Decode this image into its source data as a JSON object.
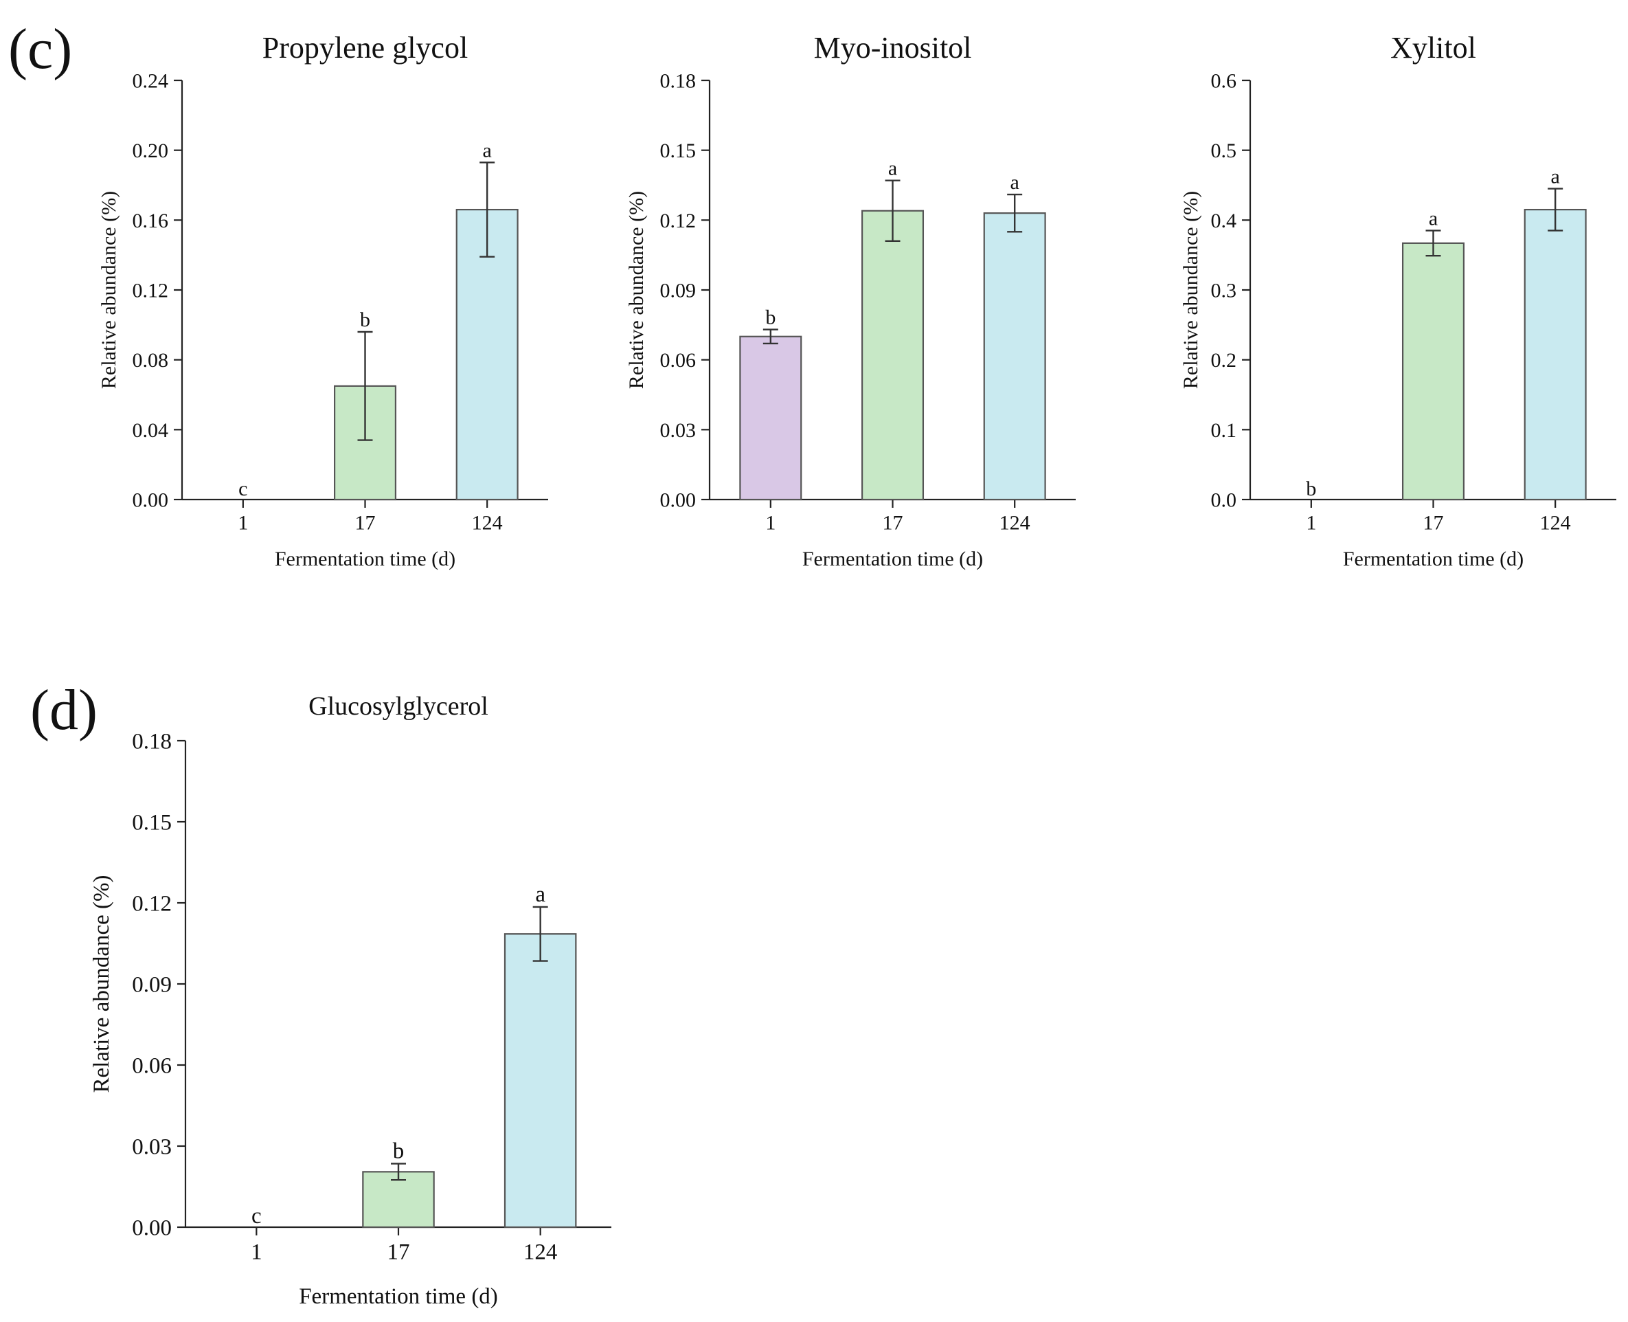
{
  "panels": {
    "c": {
      "label": "(c)"
    },
    "d": {
      "label": "(d)"
    }
  },
  "colors": {
    "day1": "#d9c8e6",
    "day17": "#c7e8c6",
    "day124": "#c9eaf0"
  },
  "chart_data": [
    {
      "panel": "(c)",
      "type": "bar",
      "title": "Propylene glycol",
      "xlabel": "Fermentation time (d)",
      "ylabel": "Relative abundance (%)",
      "categories": [
        "1",
        "17",
        "124"
      ],
      "values": [
        0.0,
        0.065,
        0.166
      ],
      "errors": [
        0.0,
        0.031,
        0.027
      ],
      "significance": [
        "c",
        "b",
        "a"
      ],
      "ylim": [
        0,
        0.24
      ],
      "yticks": [
        0,
        0.04,
        0.08,
        0.12,
        0.16,
        0.2,
        0.24
      ],
      "yticklabels": [
        "0.00",
        "0.04",
        "0.08",
        "0.12",
        "0.16",
        "0.20",
        "0.24"
      ]
    },
    {
      "panel": "(c)",
      "type": "bar",
      "title": "Myo-inositol",
      "xlabel": "Fermentation time (d)",
      "ylabel": "Relative abundance (%)",
      "categories": [
        "1",
        "17",
        "124"
      ],
      "values": [
        0.07,
        0.124,
        0.123
      ],
      "errors": [
        0.003,
        0.013,
        0.008
      ],
      "significance": [
        "b",
        "a",
        "a"
      ],
      "ylim": [
        0,
        0.18
      ],
      "yticks": [
        0,
        0.03,
        0.06,
        0.09,
        0.12,
        0.15,
        0.18
      ],
      "yticklabels": [
        "0.00",
        "0.03",
        "0.06",
        "0.09",
        "0.12",
        "0.15",
        "0.18"
      ]
    },
    {
      "panel": "(c)",
      "type": "bar",
      "title": "Xylitol",
      "xlabel": "Fermentation time (d)",
      "ylabel": "Relative abundance (%)",
      "categories": [
        "1",
        "17",
        "124"
      ],
      "values": [
        0.0,
        0.367,
        0.415
      ],
      "errors": [
        0.0,
        0.018,
        0.03
      ],
      "significance": [
        "b",
        "a",
        "a"
      ],
      "ylim": [
        0,
        0.6
      ],
      "yticks": [
        0,
        0.1,
        0.2,
        0.3,
        0.4,
        0.5,
        0.6
      ],
      "yticklabels": [
        "0.0",
        "0.1",
        "0.2",
        "0.3",
        "0.4",
        "0.5",
        "0.6"
      ]
    },
    {
      "panel": "(d)",
      "type": "bar",
      "title": "Glucosylglycerol",
      "xlabel": "Fermentation time (d)",
      "ylabel": "Relative abundance (%)",
      "categories": [
        "1",
        "17",
        "124"
      ],
      "values": [
        0.0,
        0.0205,
        0.1085
      ],
      "errors": [
        0.0,
        0.003,
        0.01
      ],
      "significance": [
        "c",
        "b",
        "a"
      ],
      "ylim": [
        0,
        0.18
      ],
      "yticks": [
        0,
        0.03,
        0.06,
        0.09,
        0.12,
        0.15,
        0.18
      ],
      "yticklabels": [
        "0.00",
        "0.03",
        "0.06",
        "0.09",
        "0.12",
        "0.15",
        "0.18"
      ]
    }
  ]
}
